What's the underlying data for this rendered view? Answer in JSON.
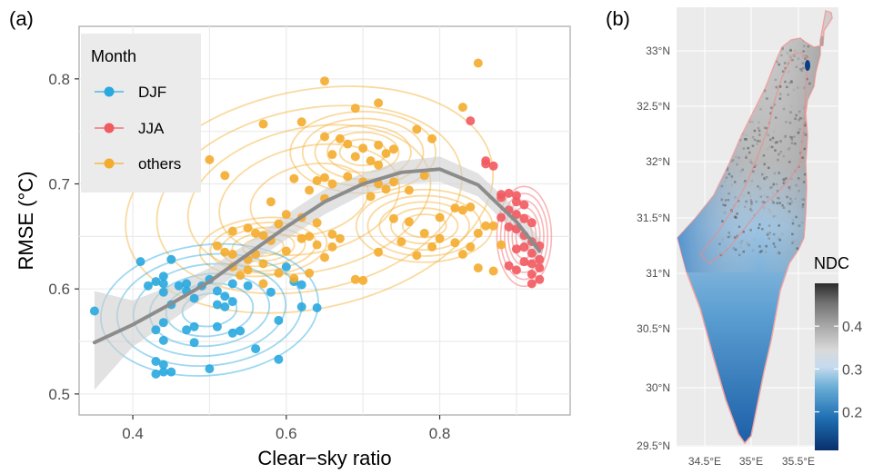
{
  "panel_a_label": "(a)",
  "panel_b_label": "(b)",
  "chart_data": [
    {
      "type": "scatter",
      "title": "",
      "xlabel": "Clear−sky ratio",
      "ylabel": "RMSE (°C)",
      "xlim": [
        0.33,
        0.97
      ],
      "ylim": [
        0.48,
        0.85
      ],
      "x_ticks": [
        0.4,
        0.6,
        0.8
      ],
      "x_tick_labels": [
        "0.4",
        "0.6",
        "0.8"
      ],
      "y_ticks": [
        0.5,
        0.6,
        0.7,
        0.8
      ],
      "y_tick_labels": [
        "0.5",
        "0.6",
        "0.7",
        "0.8"
      ],
      "grid": true,
      "legend": {
        "title": "Month",
        "position": "top-left"
      },
      "series": [
        {
          "name": "DJF",
          "color": "#29A9DF",
          "points": [
            [
              0.35,
              0.579
            ],
            [
              0.41,
              0.626
            ],
            [
              0.42,
              0.603
            ],
            [
              0.43,
              0.607
            ],
            [
              0.44,
              0.605
            ],
            [
              0.44,
              0.612
            ],
            [
              0.45,
              0.628
            ],
            [
              0.44,
              0.597
            ],
            [
              0.45,
              0.585
            ],
            [
              0.44,
              0.568
            ],
            [
              0.43,
              0.561
            ],
            [
              0.44,
              0.551
            ],
            [
              0.43,
              0.531
            ],
            [
              0.44,
              0.528
            ],
            [
              0.44,
              0.521
            ],
            [
              0.43,
              0.519
            ],
            [
              0.45,
              0.521
            ],
            [
              0.46,
              0.603
            ],
            [
              0.47,
              0.605
            ],
            [
              0.47,
              0.598
            ],
            [
              0.48,
              0.591
            ],
            [
              0.49,
              0.603
            ],
            [
              0.5,
              0.609
            ],
            [
              0.51,
              0.598
            ],
            [
              0.52,
              0.593
            ],
            [
              0.53,
              0.605
            ],
            [
              0.53,
              0.588
            ],
            [
              0.52,
              0.583
            ],
            [
              0.51,
              0.585
            ],
            [
              0.47,
              0.561
            ],
            [
              0.48,
              0.564
            ],
            [
              0.48,
              0.549
            ],
            [
              0.5,
              0.524
            ],
            [
              0.51,
              0.564
            ],
            [
              0.53,
              0.558
            ],
            [
              0.54,
              0.56
            ],
            [
              0.55,
              0.603
            ],
            [
              0.56,
              0.543
            ],
            [
              0.59,
              0.57
            ],
            [
              0.6,
              0.621
            ],
            [
              0.61,
              0.607
            ],
            [
              0.62,
              0.604
            ],
            [
              0.62,
              0.583
            ],
            [
              0.64,
              0.582
            ],
            [
              0.59,
              0.533
            ],
            [
              0.58,
              0.597
            ]
          ]
        },
        {
          "name": "JJA",
          "color": "#F15A60",
          "points": [
            [
              0.84,
              0.76
            ],
            [
              0.86,
              0.722
            ],
            [
              0.86,
              0.719
            ],
            [
              0.87,
              0.717
            ],
            [
              0.88,
              0.69
            ],
            [
              0.88,
              0.687
            ],
            [
              0.89,
              0.691
            ],
            [
              0.9,
              0.689
            ],
            [
              0.9,
              0.683
            ],
            [
              0.91,
              0.68
            ],
            [
              0.89,
              0.675
            ],
            [
              0.9,
              0.671
            ],
            [
              0.91,
              0.667
            ],
            [
              0.92,
              0.663
            ],
            [
              0.88,
              0.668
            ],
            [
              0.89,
              0.659
            ],
            [
              0.9,
              0.657
            ],
            [
              0.91,
              0.651
            ],
            [
              0.92,
              0.645
            ],
            [
              0.93,
              0.641
            ],
            [
              0.91,
              0.64
            ],
            [
              0.9,
              0.638
            ],
            [
              0.92,
              0.634
            ],
            [
              0.93,
              0.628
            ],
            [
              0.91,
              0.626
            ],
            [
              0.92,
              0.624
            ],
            [
              0.93,
              0.62
            ],
            [
              0.92,
              0.614
            ],
            [
              0.93,
              0.609
            ],
            [
              0.92,
              0.605
            ],
            [
              0.9,
              0.618
            ],
            [
              0.89,
              0.622
            ]
          ]
        },
        {
          "name": "others",
          "color": "#F4AC2E",
          "points": [
            [
              0.85,
              0.815
            ],
            [
              0.65,
              0.798
            ],
            [
              0.83,
              0.773
            ],
            [
              0.72,
              0.777
            ],
            [
              0.69,
              0.772
            ],
            [
              0.62,
              0.759
            ],
            [
              0.57,
              0.757
            ],
            [
              0.77,
              0.752
            ],
            [
              0.79,
              0.743
            ],
            [
              0.72,
              0.737
            ],
            [
              0.74,
              0.733
            ],
            [
              0.67,
              0.743
            ],
            [
              0.65,
              0.745
            ],
            [
              0.68,
              0.738
            ],
            [
              0.7,
              0.734
            ],
            [
              0.66,
              0.728
            ],
            [
              0.69,
              0.726
            ],
            [
              0.73,
              0.729
            ],
            [
              0.72,
              0.718
            ],
            [
              0.71,
              0.722
            ],
            [
              0.7,
              0.702
            ],
            [
              0.72,
              0.7
            ],
            [
              0.74,
              0.702
            ],
            [
              0.76,
              0.694
            ],
            [
              0.78,
              0.708
            ],
            [
              0.73,
              0.695
            ],
            [
              0.71,
              0.688
            ],
            [
              0.68,
              0.707
            ],
            [
              0.65,
              0.706
            ],
            [
              0.66,
              0.7
            ],
            [
              0.64,
              0.703
            ],
            [
              0.61,
              0.705
            ],
            [
              0.5,
              0.723
            ],
            [
              0.52,
              0.708
            ],
            [
              0.63,
              0.694
            ],
            [
              0.65,
              0.686
            ],
            [
              0.58,
              0.683
            ],
            [
              0.6,
              0.671
            ],
            [
              0.62,
              0.668
            ],
            [
              0.64,
              0.663
            ],
            [
              0.66,
              0.652
            ],
            [
              0.67,
              0.648
            ],
            [
              0.66,
              0.64
            ],
            [
              0.65,
              0.63
            ],
            [
              0.63,
              0.65
            ],
            [
              0.62,
              0.648
            ],
            [
              0.64,
              0.642
            ],
            [
              0.6,
              0.636
            ],
            [
              0.58,
              0.646
            ],
            [
              0.57,
              0.651
            ],
            [
              0.53,
              0.655
            ],
            [
              0.55,
              0.658
            ],
            [
              0.56,
              0.653
            ],
            [
              0.59,
              0.662
            ],
            [
              0.51,
              0.641
            ],
            [
              0.52,
              0.635
            ],
            [
              0.53,
              0.633
            ],
            [
              0.55,
              0.628
            ],
            [
              0.56,
              0.633
            ],
            [
              0.57,
              0.624
            ],
            [
              0.55,
              0.618
            ],
            [
              0.54,
              0.613
            ],
            [
              0.53,
              0.621
            ],
            [
              0.57,
              0.605
            ],
            [
              0.59,
              0.615
            ],
            [
              0.61,
              0.61
            ],
            [
              0.63,
              0.615
            ],
            [
              0.69,
              0.609
            ],
            [
              0.7,
              0.608
            ],
            [
              0.72,
              0.635
            ],
            [
              0.75,
              0.645
            ],
            [
              0.77,
              0.632
            ],
            [
              0.8,
              0.648
            ],
            [
              0.8,
              0.668
            ],
            [
              0.82,
              0.677
            ],
            [
              0.83,
              0.675
            ],
            [
              0.84,
              0.678
            ],
            [
              0.86,
              0.66
            ],
            [
              0.87,
              0.66
            ],
            [
              0.84,
              0.64
            ],
            [
              0.85,
              0.62
            ],
            [
              0.87,
              0.617
            ],
            [
              0.82,
              0.644
            ],
            [
              0.83,
              0.633
            ],
            [
              0.88,
              0.642
            ],
            [
              0.78,
              0.653
            ],
            [
              0.79,
              0.64
            ],
            [
              0.76,
              0.664
            ],
            [
              0.74,
              0.667
            ],
            [
              0.85,
              0.653
            ]
          ]
        }
      ],
      "smooth_line": {
        "x": [
          0.35,
          0.4,
          0.45,
          0.5,
          0.55,
          0.6,
          0.65,
          0.7,
          0.75,
          0.8,
          0.85,
          0.9,
          0.93
        ],
        "y": [
          0.549,
          0.566,
          0.586,
          0.607,
          0.633,
          0.659,
          0.683,
          0.7,
          0.711,
          0.714,
          0.699,
          0.664,
          0.636
        ],
        "se_low": [
          0.504,
          0.545,
          0.57,
          0.595,
          0.622,
          0.647,
          0.671,
          0.69,
          0.7,
          0.702,
          0.688,
          0.652,
          0.622
        ],
        "se_high": [
          0.598,
          0.589,
          0.603,
          0.62,
          0.644,
          0.671,
          0.695,
          0.71,
          0.722,
          0.726,
          0.71,
          0.676,
          0.648
        ],
        "color": "#8c8c8c"
      }
    },
    {
      "type": "heatmap",
      "title": "",
      "x_tick_labels": [
        "34.5°E",
        "35°E",
        "35.5°E"
      ],
      "y_tick_labels": [
        "33°N",
        "32.5°N",
        "32°N",
        "31.5°N",
        "31°N",
        "30.5°N",
        "30°N",
        "29.5°N"
      ],
      "colorbar": {
        "title": "NDC",
        "ticks": [
          0.2,
          0.3,
          0.4
        ],
        "tick_labels": [
          "0.2",
          "0.3",
          "0.4"
        ],
        "range": [
          0.11,
          0.5
        ],
        "colors": [
          "#08306b",
          "#2171b5",
          "#6baed6",
          "#c6dbef",
          "#d9d9d9",
          "#a6a6a6",
          "#737373",
          "#2b2b2b"
        ]
      }
    }
  ]
}
